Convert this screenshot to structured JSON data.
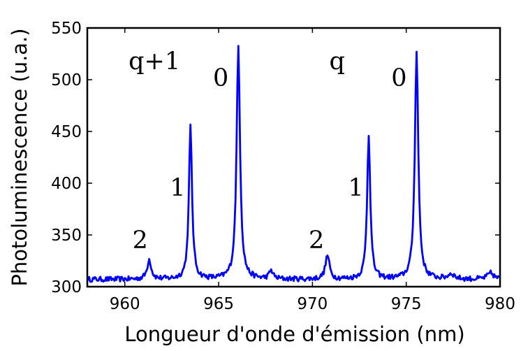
{
  "chart_data": {
    "type": "line",
    "xlabel": "Longueur d'onde d'émission (nm)",
    "ylabel": "Photoluminescence (u.a.)",
    "xlim": [
      958,
      980
    ],
    "ylim": [
      300,
      550
    ],
    "xticks": [
      "960",
      "965",
      "970",
      "975",
      "980"
    ],
    "yticks": [
      "300",
      "350",
      "400",
      "450",
      "500",
      "550"
    ],
    "grid": false,
    "line_color": "#0000ff",
    "series": [
      {
        "baseline": 307,
        "noise": 2.5,
        "peaks": [
          {
            "x": 961.3,
            "height": 19,
            "width": 0.13
          },
          {
            "x": 963.5,
            "height": 147,
            "width": 0.1
          },
          {
            "x": 966.05,
            "height": 225,
            "width": 0.11
          },
          {
            "x": 967.8,
            "height": 8,
            "width": 0.12
          },
          {
            "x": 970.8,
            "height": 23,
            "width": 0.13
          },
          {
            "x": 973.0,
            "height": 140,
            "width": 0.1
          },
          {
            "x": 975.55,
            "height": 220,
            "width": 0.11
          },
          {
            "x": 977.4,
            "height": 5,
            "width": 0.2
          },
          {
            "x": 979.5,
            "height": 6,
            "width": 0.2
          }
        ]
      }
    ],
    "annotations": [
      {
        "text": "q+1",
        "x": 960.2,
        "y": 510
      },
      {
        "text": "0",
        "x": 964.7,
        "y": 494
      },
      {
        "text": "1",
        "x": 962.4,
        "y": 388
      },
      {
        "text": "2",
        "x": 960.4,
        "y": 337
      },
      {
        "text": "q",
        "x": 970.9,
        "y": 510
      },
      {
        "text": "0",
        "x": 974.2,
        "y": 494
      },
      {
        "text": "1",
        "x": 971.9,
        "y": 388
      },
      {
        "text": "2",
        "x": 969.8,
        "y": 337
      }
    ]
  }
}
